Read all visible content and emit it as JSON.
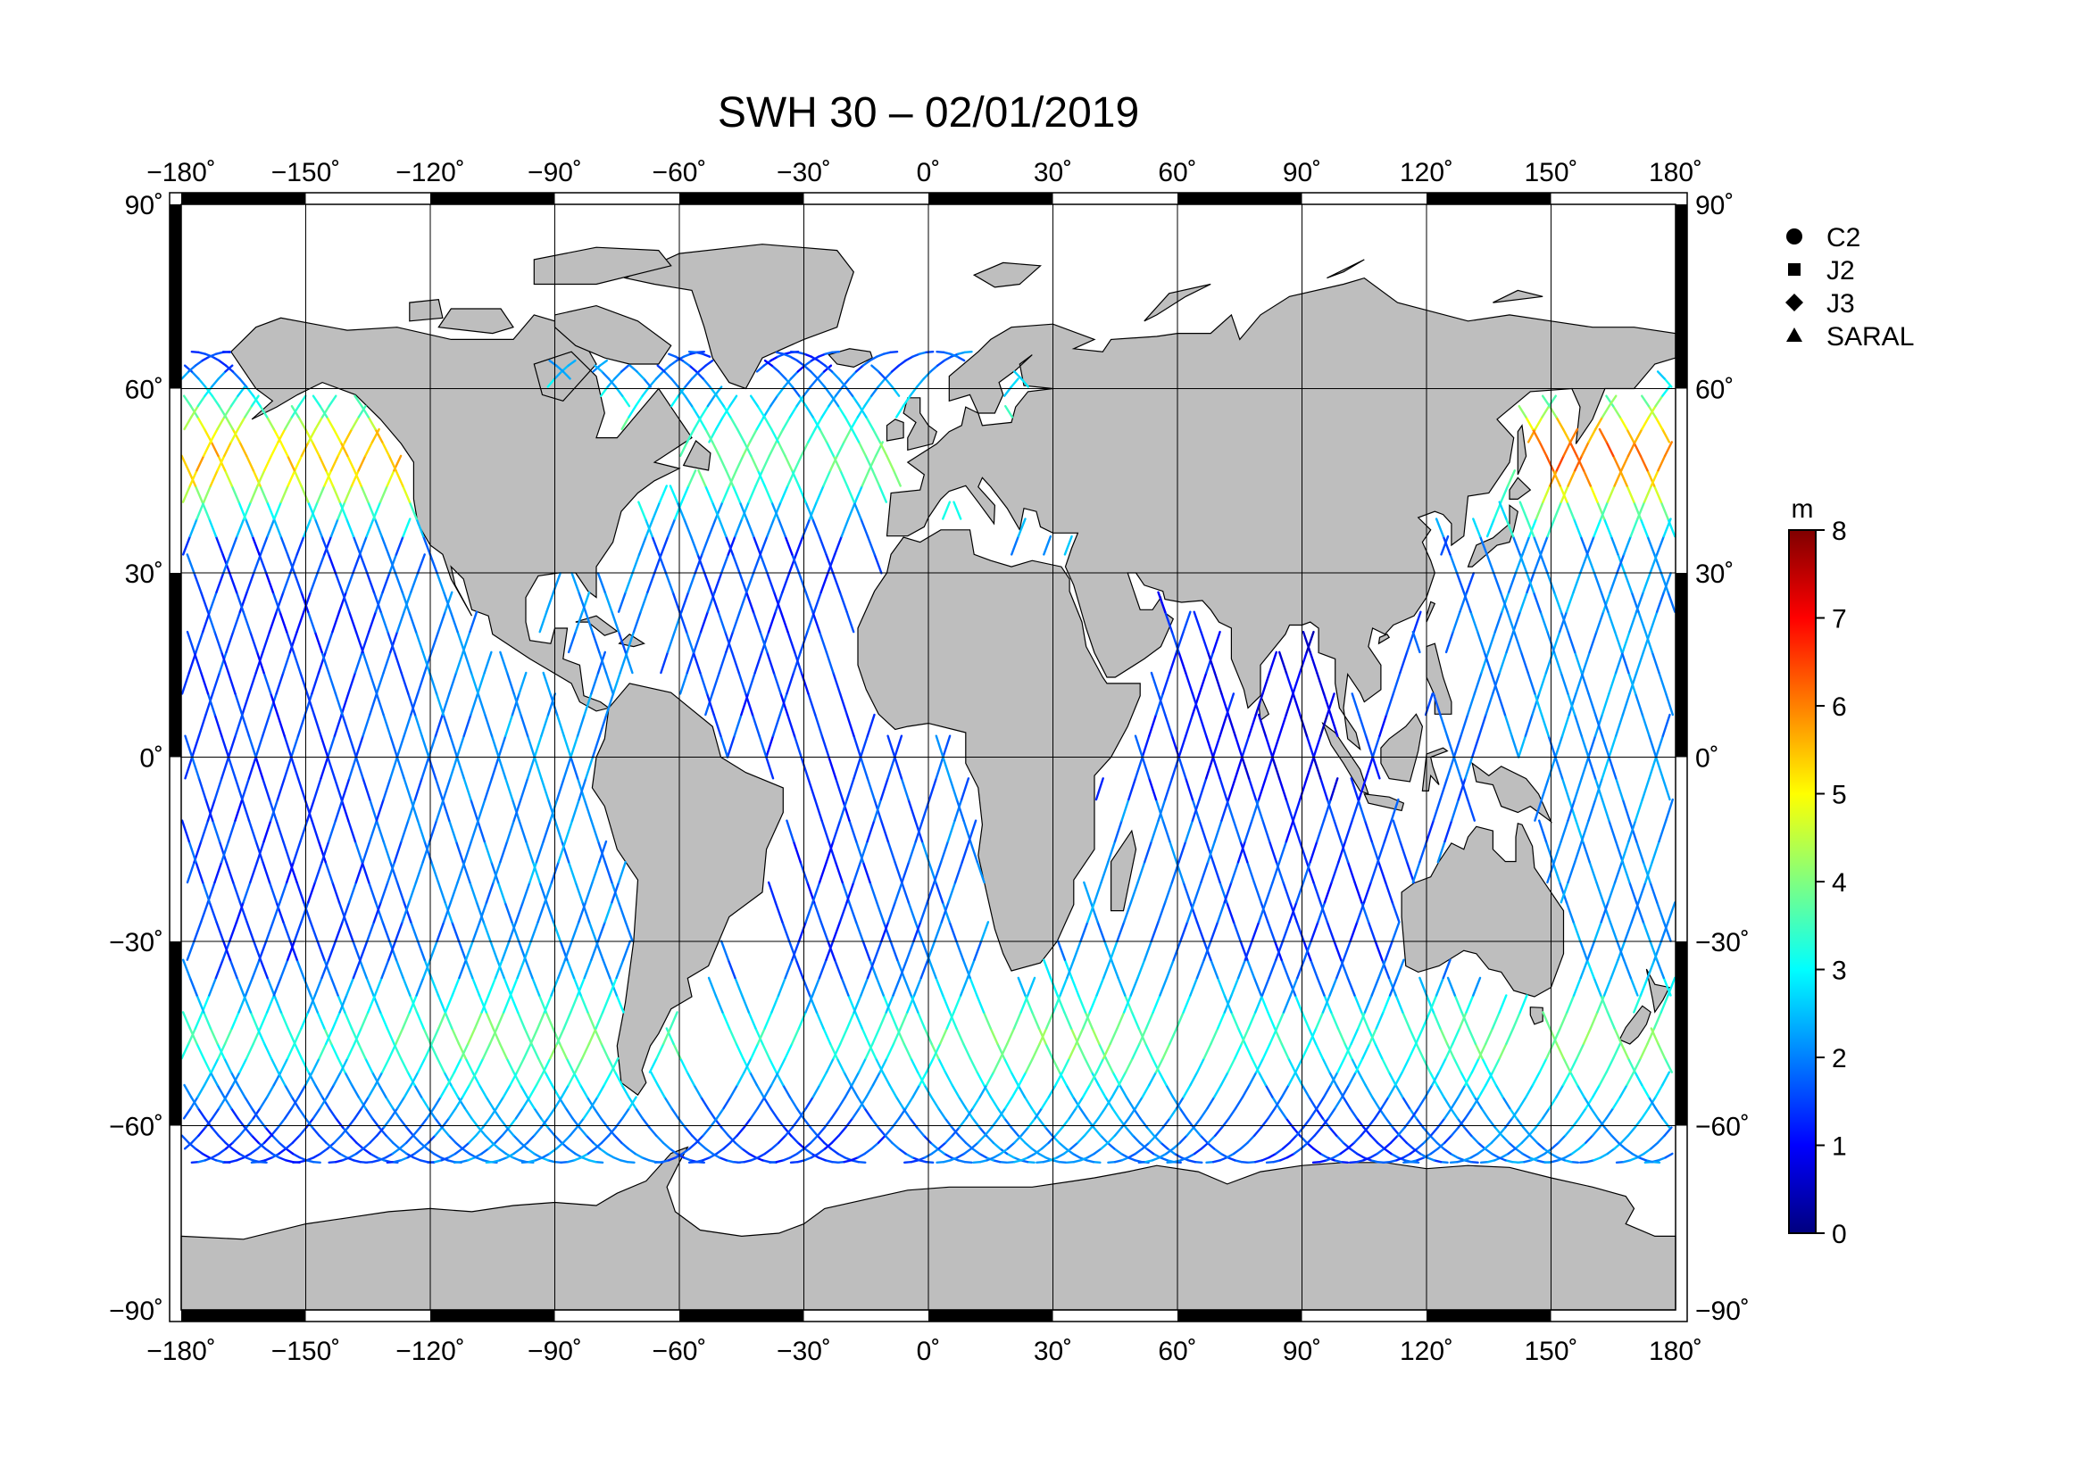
{
  "title": "SWH 30 – 02/01/2019",
  "map": {
    "lon_range": [
      -180,
      180
    ],
    "lat_range": [
      -90,
      90
    ],
    "lon_ticks": [
      -180,
      -150,
      -120,
      -90,
      -60,
      -30,
      0,
      30,
      60,
      90,
      120,
      150,
      180
    ],
    "lat_ticks": [
      90,
      60,
      30,
      0,
      -30,
      -60,
      -90
    ],
    "lon_labels": [
      "−180˚",
      "−150˚",
      "−120˚",
      "−90˚",
      "−60˚",
      "−30˚",
      "0˚",
      "30˚",
      "60˚",
      "90˚",
      "120˚",
      "150˚",
      "180˚"
    ],
    "lat_labels": [
      "90˚",
      "60˚",
      "30˚",
      "0˚",
      "−30˚",
      "−60˚",
      "−90˚"
    ],
    "grid": true,
    "land_color": "#bebebe",
    "ocean_color": "#ffffff"
  },
  "legend": {
    "placement": "right",
    "items": [
      {
        "label": "C2",
        "icon": "circle-icon"
      },
      {
        "label": "J2",
        "icon": "square-icon"
      },
      {
        "label": "J3",
        "icon": "diamond-icon"
      },
      {
        "label": "SARAL",
        "icon": "triangle-icon"
      }
    ]
  },
  "colorbar": {
    "unit": "m",
    "min": 0,
    "max": 8,
    "ticks": [
      "0",
      "1",
      "2",
      "3",
      "4",
      "5",
      "6",
      "7",
      "8"
    ],
    "colors": [
      "#00007f",
      "#0000ff",
      "#0080ff",
      "#00ffff",
      "#80ff80",
      "#ffff00",
      "#ff8000",
      "#ff0000",
      "#7f0000"
    ]
  }
}
